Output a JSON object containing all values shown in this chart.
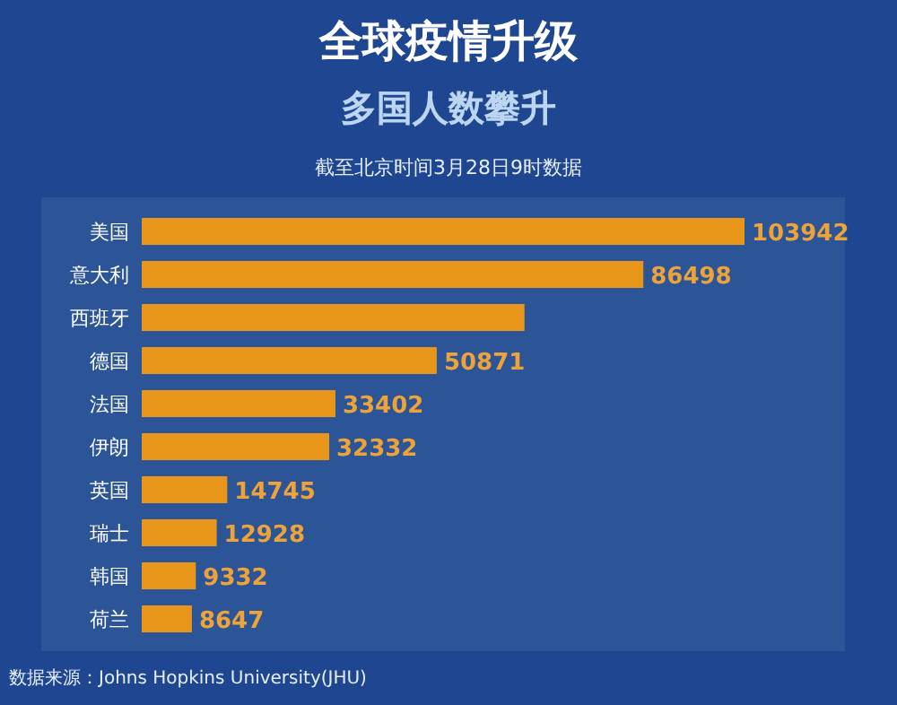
{
  "chart_data": {
    "type": "bar",
    "orientation": "horizontal",
    "title": "全球疫情升级",
    "subtitle": "多国人数攀升",
    "annotations": [
      "截至北京时间3月28日9时数据",
      "数据来源：Johns Hopkins University(JHU)"
    ],
    "categories": [
      "美国",
      "意大利",
      "西班牙",
      "德国",
      "法国",
      "伊朗",
      "英国",
      "瑞士",
      "韩国",
      "荷兰"
    ],
    "values": [
      103942,
      86498,
      66000,
      50871,
      33402,
      32332,
      14745,
      12928,
      9332,
      8647
    ],
    "value_labels": [
      "103942",
      "86498",
      null,
      "50871",
      "33402",
      "32332",
      "14745",
      "12928",
      "9332",
      "8647"
    ],
    "color": "#e8961a"
  }
}
